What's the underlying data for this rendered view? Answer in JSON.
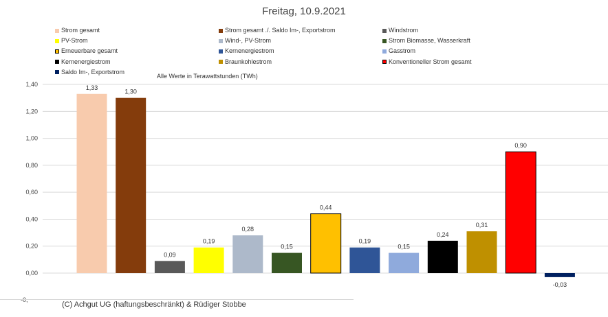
{
  "chart_data": {
    "type": "bar",
    "title": "Freitag, 10.9.2021",
    "subtitle": "Alle Werte in Terawattstunden (TWh)",
    "credit": "(C) Achgut UG (haftungsbeschränkt) & Rüdiger Stobbe",
    "ylim": [
      -0.2,
      1.4
    ],
    "yticks": [
      "1,40",
      "1,20",
      "1,00",
      "0,80",
      "0,60",
      "0,40",
      "0,20",
      "0,00"
    ],
    "ytick_values": [
      1.4,
      1.2,
      1.0,
      0.8,
      0.6,
      0.4,
      0.2,
      0.0
    ],
    "neg_tick_label": "-0,",
    "categories": [
      "Strom gesamt",
      "Strom gesamt ./. Saldo Im-, Exportstrom",
      "Windstrom",
      "PV-Strom",
      "Wind-, PV-Strom",
      "Strom Biomasse, Wasserkraft",
      "Erneuerbare gesamt",
      "Kernenergiestrom",
      "Gasstrom",
      "Kernenergiestrom",
      "Braunkohlestrom",
      "Konventioneller Strom gesamt",
      "Saldo Im-, Exportstrom"
    ],
    "values": [
      1.33,
      1.3,
      0.09,
      0.19,
      0.28,
      0.15,
      0.44,
      0.19,
      0.15,
      0.24,
      0.31,
      0.9,
      -0.03
    ],
    "value_labels": [
      "1,33",
      "1,30",
      "0,09",
      "0,19",
      "0,28",
      "0,15",
      "0,44",
      "0,19",
      "0,15",
      "0,24",
      "0,31",
      "0,90",
      "-0,03"
    ],
    "colors": [
      "#f8cbad",
      "#843c0c",
      "#595959",
      "#ffff00",
      "#adb9ca",
      "#375623",
      "#ffc000",
      "#2f5597",
      "#8faadc",
      "#000000",
      "#bf9000",
      "#ff0000",
      "#002060"
    ],
    "outlined": [
      false,
      false,
      false,
      false,
      false,
      false,
      true,
      false,
      false,
      false,
      false,
      true,
      false
    ],
    "legend": [
      {
        "label": "Strom gesamt",
        "color": "#f8cbad"
      },
      {
        "label": "Strom gesamt ./. Saldo Im-, Exportstrom",
        "color": "#843c0c"
      },
      {
        "label": "Windstrom",
        "color": "#595959"
      },
      {
        "label": "PV-Strom",
        "color": "#ffff00"
      },
      {
        "label": "Wind-, PV-Strom",
        "color": "#adb9ca"
      },
      {
        "label": "Strom Biomasse, Wasserkraft",
        "color": "#375623"
      },
      {
        "label": "Erneuerbare gesamt",
        "color": "#ffc000",
        "outlined": true
      },
      {
        "label": "Kernenergiestrom",
        "color": "#2f5597"
      },
      {
        "label": "Gasstrom",
        "color": "#8faadc"
      },
      {
        "label": "Kernenergiestrom",
        "color": "#000000"
      },
      {
        "label": "Braunkohlestrom",
        "color": "#bf9000"
      },
      {
        "label": "Konventioneller Strom gesamt",
        "color": "#ff0000",
        "outlined": true
      },
      {
        "label": "Saldo Im-, Exportstrom",
        "color": "#002060"
      }
    ]
  }
}
